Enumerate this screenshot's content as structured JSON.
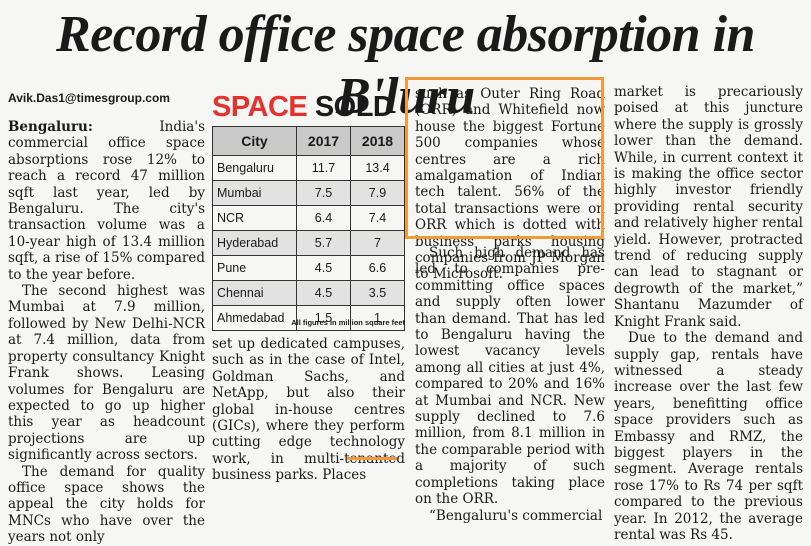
{
  "headline": "Record office space absorption in B'luru",
  "byline": "Avik.Das1@timesgroup.com",
  "infobox": {
    "title_accent": "SPACE",
    "title_rest": " SOLD",
    "headers": [
      "City",
      "2017",
      "2018"
    ],
    "rows": [
      [
        "Bengaluru",
        "11.7",
        "13.4"
      ],
      [
        "Mumbai",
        "7.5",
        "7.9"
      ],
      [
        "NCR",
        "6.4",
        "7.4"
      ],
      [
        "Hyderabad",
        "5.7",
        "7"
      ],
      [
        "Pune",
        "4.5",
        "6.6"
      ],
      [
        "Chennai",
        "4.5",
        "3.5"
      ],
      [
        "Ahmedabad",
        "1.5",
        "1"
      ]
    ],
    "footnote": "All figures in million square feet"
  },
  "article": {
    "col1": {
      "lead": "Bengaluru:",
      "p1": " India's commercial office space absorptions rose 12% to reach a record 47 million sqft last year, led by Bengaluru. The city's transaction volume was a 10-year high of 13.4 million sqft, a rise of 15% compared to the year before.",
      "p2": "The second highest was Mumbai at 7.9 million, followed by New Delhi-NCR at 7.4 million, data from property consultancy Knight Frank shows. Leasing volumes for Bengaluru are expected to go up higher this year as headcount projections are up significantly across sectors.",
      "p3": "The demand for quality office space shows the appeal the city holds for MNCs who have over the years not only"
    },
    "col2": "set up dedicated campuses, such as in the case of Intel, Goldman Sachs, and NetApp, but also their global in-house centres (GICs), where they perform cutting edge technology work, in multi-tenanted business parks. Places",
    "col3_highlight": "such as Outer Ring Road (ORR) and Whitefield now house the biggest Fortune 500 companies whose centres are a rich amalgamation of Indian tech talent. 56% of the total transactions were on ORR which is dotted with business parks housing companies from JP Morgan to Microsoft.",
    "col3_p1": "Such high demand has led to companies pre-committing office spaces and supply often lower than demand. That has led to Bengaluru having the lowest vacancy levels among all cities at just 4%, compared to 20% and 16% at Mumbai and NCR. New supply declined to 7.6 million, from 8.1 million in the comparable period with a majority of such completions taking place on the ORR.",
    "col3_p2": "“Bengaluru's commercial",
    "col4_p1": "market is precariously poised at this juncture where the supply is grossly lower than the demand. While, in current context it is making the office sector highly investor friendly providing rental security and relatively higher rental yield. However, protracted trend of reducing supply can lead to stagnant or degrowth of the market,” Shantanu Mazumder of Knight Frank said.",
    "col4_p2": "Due to the demand and supply gap, rentals have witnessed a steady increase over the last few years, benefitting office space providers such as Embassy and RMZ, the biggest players in the segment. Average rentals rose 17% to Rs 74 per sqft compared to the previous year. In 2012, the average rental was Rs 45."
  }
}
